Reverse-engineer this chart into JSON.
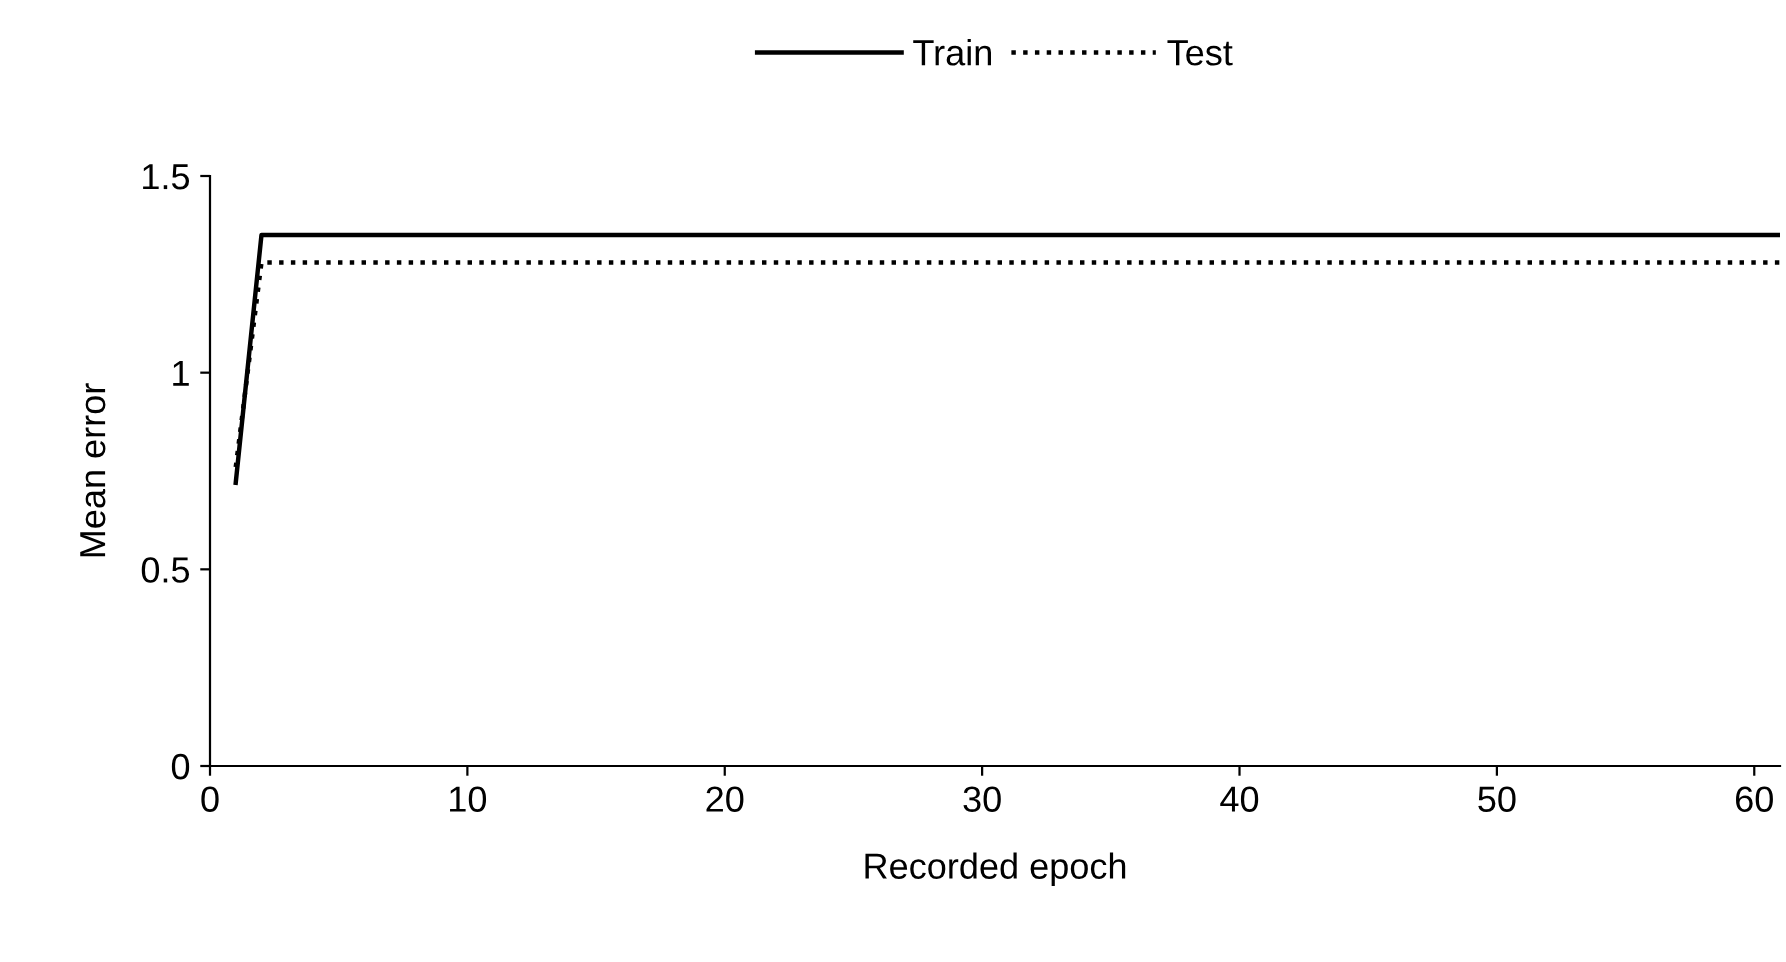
{
  "chart_data": {
    "type": "line",
    "xlabel": "Recorded epoch",
    "ylabel": "Mean error",
    "x": [
      1,
      2,
      61
    ],
    "series": [
      {
        "name": "Train",
        "color": "#000000",
        "values": [
          0.72,
          1.35,
          1.35
        ],
        "line_style": "solid"
      },
      {
        "name": "Test",
        "color": "#000000",
        "values": [
          0.76,
          1.28,
          1.28
        ],
        "line_style": "dotted"
      }
    ],
    "xlim": [
      0,
      61
    ],
    "xticks": [
      0,
      10,
      20,
      30,
      40,
      50,
      60
    ],
    "ylim": [
      0,
      1.5
    ],
    "yticks": [
      0,
      0.5,
      1,
      1.5
    ],
    "grid": false,
    "legend": "top",
    "marker": "none"
  }
}
